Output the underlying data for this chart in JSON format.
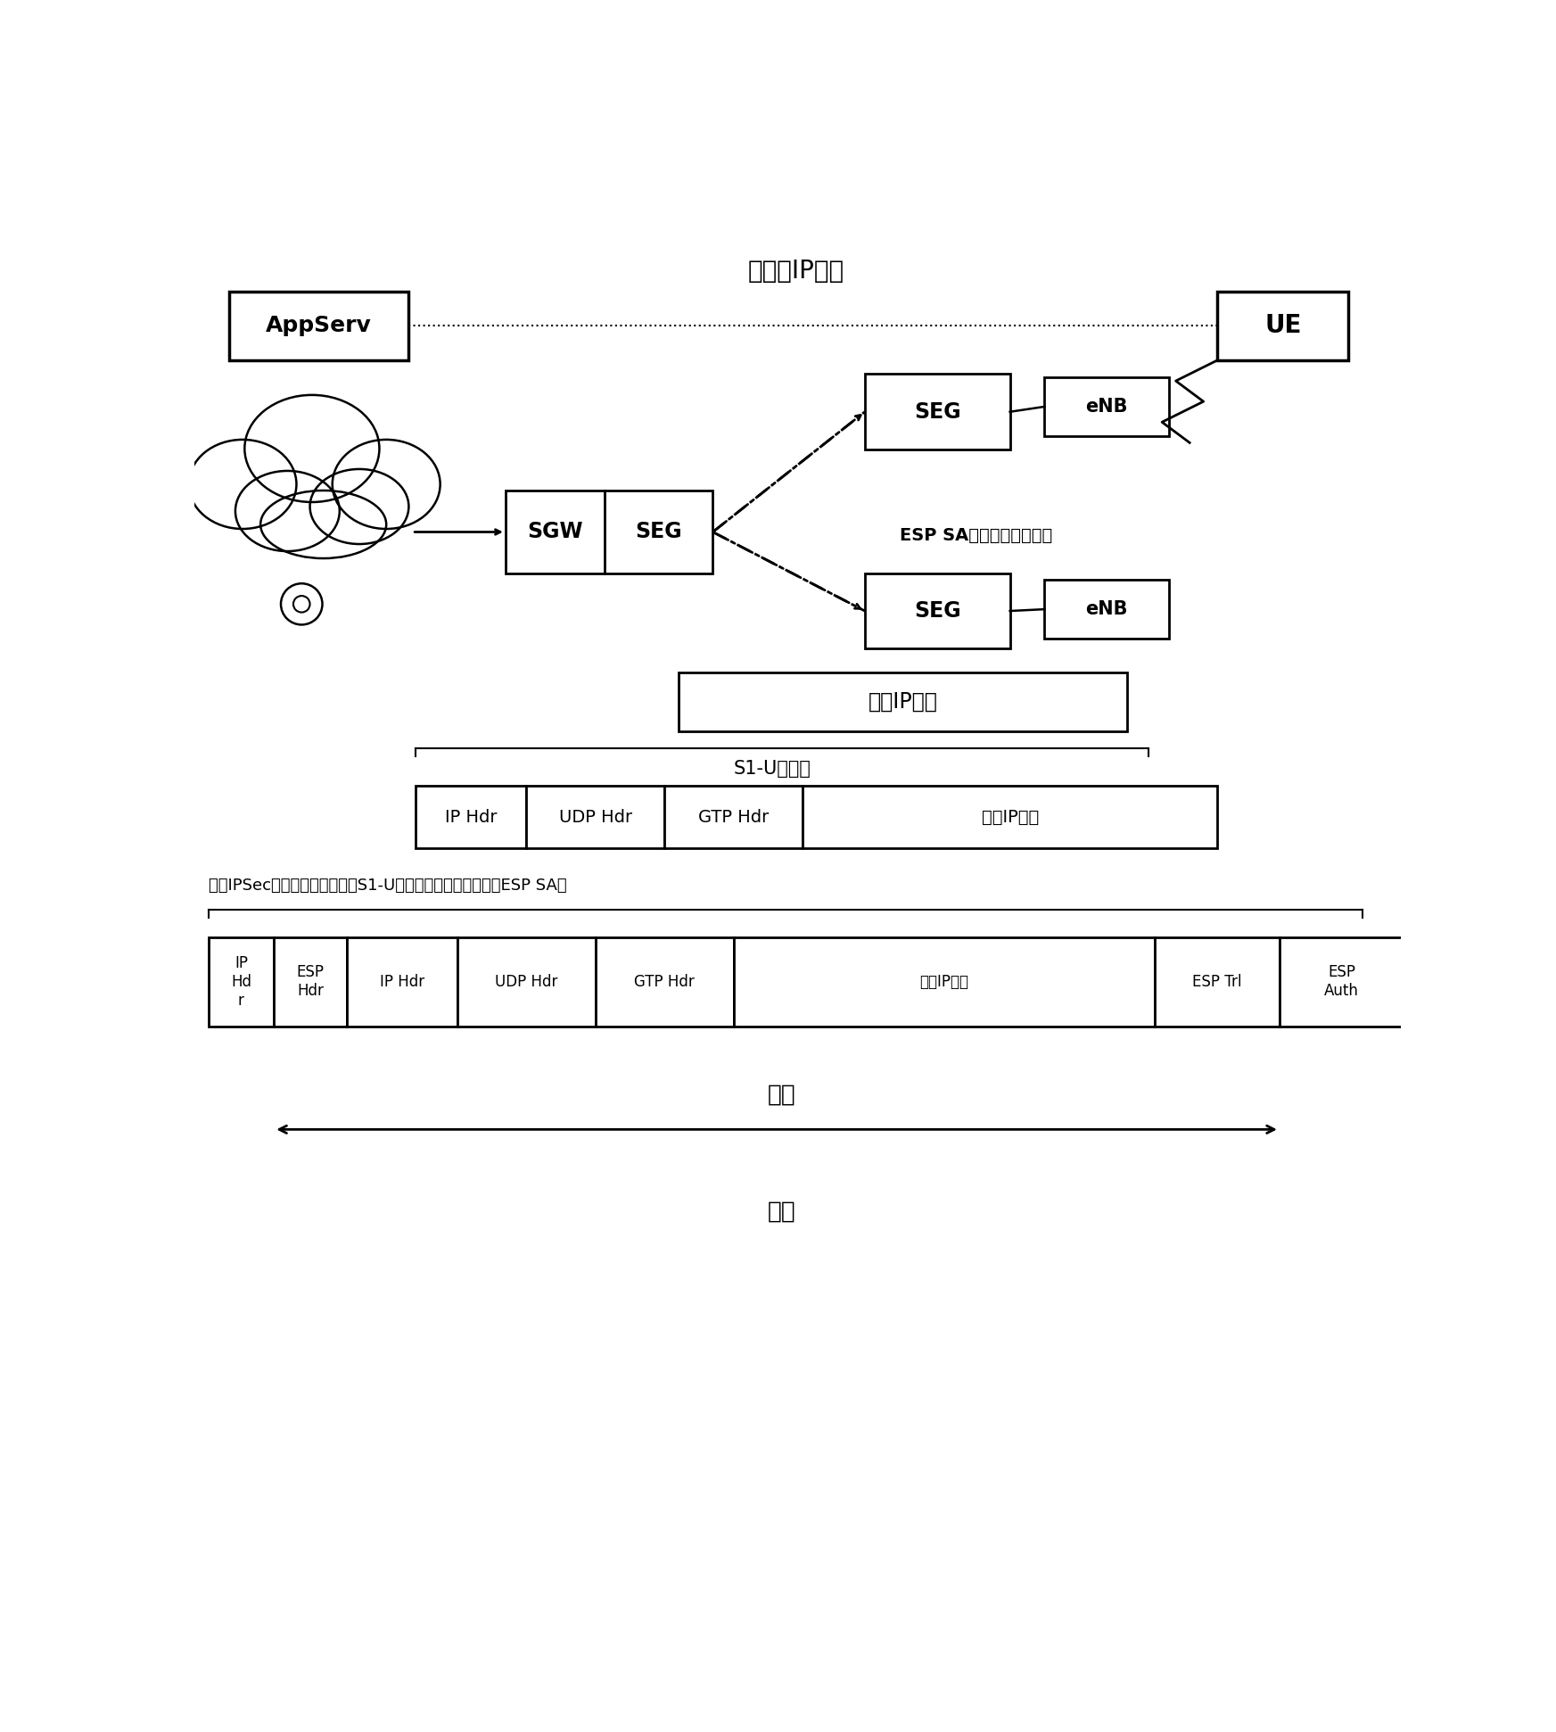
{
  "title_end_to_end": "端对端IP路径",
  "label_appserv": "AppServ",
  "label_ue": "UE",
  "label_seg": "SEG",
  "label_enb": "eNB",
  "label_sgw": "SGW",
  "label_esp_sa": "ESP SA（在隊道模式下）",
  "label_original_ip": "原始IP分组",
  "label_s1u": "S1-U数据报",
  "label_ipsec_header": "具有IPSec首部和尾部的加密的S1-U数据报（在隊道模式下的ESP SA）",
  "row1_labels": [
    "IP Hdr",
    "UDP Hdr",
    "GTP Hdr",
    "原始IP分组"
  ],
  "row2_labels": [
    "IP\nHd\nr",
    "ESP\nHdr",
    "IP Hdr",
    "UDP Hdr",
    "GTP Hdr",
    "原始IP分组",
    "ESP Trl",
    "ESP\nAuth"
  ],
  "label_encrypt": "加密",
  "label_auth": "鉴别",
  "bg_color": "#ffffff"
}
